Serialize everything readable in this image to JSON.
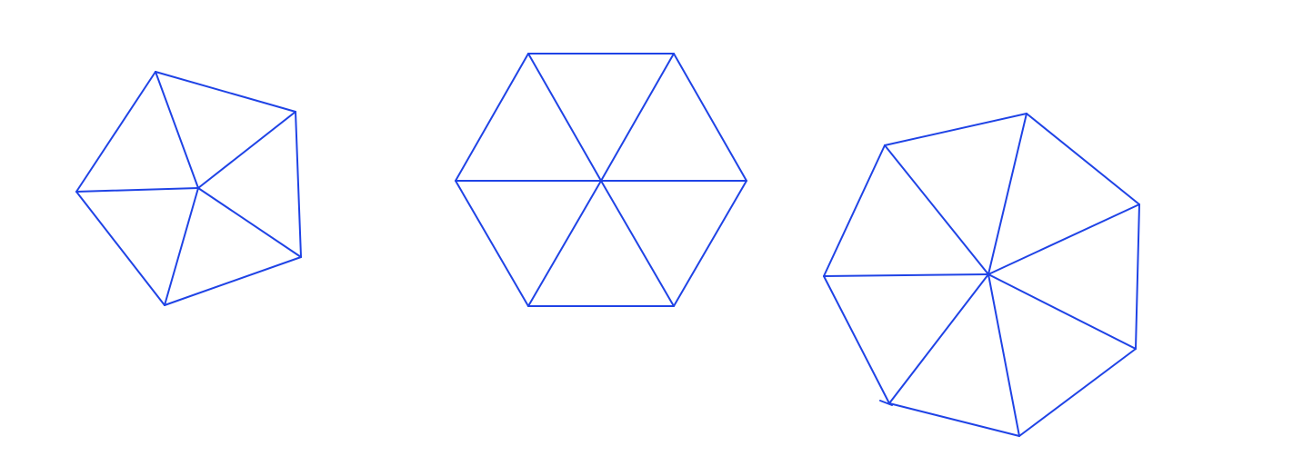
{
  "figure": {
    "background_color": "#ffffff",
    "stroke_color": "#1f43e6",
    "polygons": [
      {
        "name": "pentagon",
        "sides": 5,
        "divided_into_triangles_from_center": true
      },
      {
        "name": "hexagon",
        "sides": 6,
        "divided_into_triangles_from_center": true
      },
      {
        "name": "heptagon",
        "sides": 7,
        "divided_into_triangles_from_center": true
      }
    ]
  }
}
